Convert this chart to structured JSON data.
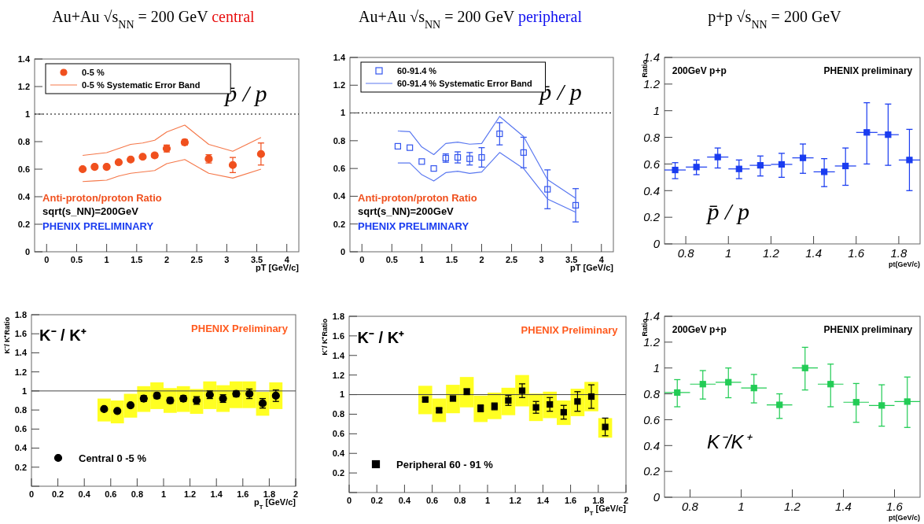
{
  "chart_data": [
    {
      "type": "scatter",
      "title": "Au+Au √s$_{NN}$ = 200 GeV central",
      "xlabel": "pT [GeV/c]",
      "xlim": [
        -0.2,
        4.2
      ],
      "xticks": [
        0,
        0.5,
        1,
        1.5,
        2,
        2.5,
        3,
        3.5,
        4
      ],
      "ylim": [
        0,
        1.4
      ],
      "yticks": [
        0,
        0.2,
        0.4,
        0.6,
        0.8,
        1,
        1.2,
        1.4
      ],
      "legend": "top left",
      "ref_lines": [
        {
          "axis": "y",
          "value": 1,
          "line_style": "dotted",
          "color": "#000000"
        }
      ],
      "annotations": [
        "p̄ / p",
        "Anti-proton/proton Ratio",
        "sqrt(s_NN)=200GeV",
        "PHENIX PRELIMINARY"
      ],
      "series": [
        {
          "name": "0-5 %",
          "color": "#f0501e",
          "marker": "circle",
          "x": [
            0.6,
            0.8,
            1.0,
            1.2,
            1.4,
            1.6,
            1.8,
            2.0,
            2.3,
            2.7,
            3.1,
            3.57
          ],
          "values": [
            0.6,
            0.617,
            0.617,
            0.65,
            0.67,
            0.69,
            0.7,
            0.75,
            0.795,
            0.675,
            0.63,
            0.71
          ],
          "errors": [
            0.01,
            0.01,
            0.01,
            0.01,
            0.01,
            0.01,
            0.015,
            0.025,
            0.02,
            0.03,
            0.055,
            0.08
          ]
        },
        {
          "type": "line",
          "name": "0-5 % Systematic Error Band",
          "color": "#f5784a",
          "x": [
            0.6,
            0.8,
            1.0,
            1.2,
            1.4,
            1.6,
            1.8,
            2.0,
            2.3,
            2.7,
            3.1,
            3.57
          ],
          "values": [
            0.7,
            0.71,
            0.72,
            0.75,
            0.78,
            0.79,
            0.81,
            0.87,
            0.92,
            0.78,
            0.73,
            0.83
          ]
        },
        {
          "type": "line",
          "color": "#f5784a",
          "x": [
            0.6,
            0.8,
            1.0,
            1.2,
            1.4,
            1.6,
            1.8,
            2.0,
            2.3,
            2.7,
            3.1,
            3.57
          ],
          "values": [
            0.51,
            0.515,
            0.52,
            0.55,
            0.57,
            0.58,
            0.59,
            0.64,
            0.67,
            0.57,
            0.535,
            0.6
          ]
        }
      ]
    },
    {
      "type": "scatter",
      "title": "Au+Au √s$_{NN}$ = 200 GeV peripheral",
      "xlabel": "pT [GeV/c]",
      "xlim": [
        -0.2,
        4.2
      ],
      "xticks": [
        0,
        0.5,
        1,
        1.5,
        2,
        2.5,
        3,
        3.5,
        4
      ],
      "ylim": [
        0,
        1.4
      ],
      "yticks": [
        0,
        0.2,
        0.4,
        0.6,
        0.8,
        1,
        1.2,
        1.4
      ],
      "legend": "top left",
      "ref_lines": [
        {
          "axis": "y",
          "value": 1,
          "line_style": "dotted",
          "color": "#000000"
        }
      ],
      "annotations": [
        "p̄ / p",
        "Anti-proton/proton Ratio",
        "sqrt(s_NN)=200GeV",
        "PHENIX PRELIMINARY"
      ],
      "series": [
        {
          "name": "60-91.4 %",
          "color": "#3355ee",
          "marker": "square",
          "x": [
            0.6,
            0.8,
            1.0,
            1.2,
            1.4,
            1.6,
            1.8,
            2.0,
            2.3,
            2.7,
            3.1,
            3.57
          ],
          "values": [
            0.76,
            0.75,
            0.65,
            0.6,
            0.675,
            0.68,
            0.67,
            0.68,
            0.85,
            0.715,
            0.45,
            0.335
          ],
          "errors": [
            null,
            null,
            null,
            null,
            0.03,
            0.04,
            0.045,
            0.07,
            0.08,
            0.11,
            0.14,
            0.12
          ]
        },
        {
          "type": "line",
          "name": "60-91.4 % Systematic Error Band",
          "color": "#5a78f0",
          "x": [
            0.6,
            0.8,
            1.0,
            1.2,
            1.4,
            1.6,
            1.8,
            2.0,
            2.3,
            2.7,
            3.1,
            3.57
          ],
          "values": [
            0.87,
            0.865,
            0.755,
            0.7,
            0.78,
            0.79,
            0.775,
            0.78,
            0.975,
            0.83,
            0.52,
            0.385
          ]
        },
        {
          "type": "line",
          "color": "#5a78f0",
          "x": [
            0.6,
            0.8,
            1.0,
            1.2,
            1.4,
            1.6,
            1.8,
            2.0,
            2.3,
            2.7,
            3.1,
            3.57
          ],
          "values": [
            0.64,
            0.64,
            0.555,
            0.51,
            0.57,
            0.58,
            0.565,
            0.575,
            0.715,
            0.6,
            0.38,
            0.285
          ]
        }
      ]
    },
    {
      "type": "scatter",
      "title": "p+p √s$_{NN}$ = 200 GeV",
      "xlabel": "pt(GeV/c)",
      "ylabel": "Ratio",
      "xlim": [
        0.7,
        1.9
      ],
      "xticks": [
        0.8,
        1,
        1.2,
        1.4,
        1.6,
        1.8
      ],
      "ylim": [
        0,
        1.4
      ],
      "yticks": [
        0,
        0.2,
        0.4,
        0.6,
        0.8,
        1,
        1.2,
        1.4
      ],
      "annotations": [
        "200GeV p+p",
        "PHENIX preliminary",
        "p̄ / p"
      ],
      "series": [
        {
          "color": "#1a3cf0",
          "marker": "square",
          "x": [
            0.75,
            0.85,
            0.95,
            1.05,
            1.15,
            1.25,
            1.35,
            1.45,
            1.55,
            1.65,
            1.75,
            1.85
          ],
          "values": [
            0.555,
            0.577,
            0.652,
            0.563,
            0.59,
            0.597,
            0.646,
            0.541,
            0.585,
            0.837,
            0.82,
            0.63
          ],
          "errors": [
            [
              0.49,
              0.61
            ],
            [
              0.52,
              0.63
            ],
            [
              0.57,
              0.72
            ],
            [
              0.49,
              0.63
            ],
            [
              0.51,
              0.66
            ],
            [
              0.5,
              0.68
            ],
            [
              0.53,
              0.75
            ],
            [
              0.43,
              0.64
            ],
            [
              0.44,
              0.72
            ],
            [
              0.6,
              1.06
            ],
            [
              0.59,
              1.05
            ],
            [
              0.4,
              0.86
            ]
          ],
          "xerrors": [
            0.05,
            0.05,
            0.05,
            0.05,
            0.05,
            0.05,
            0.05,
            0.05,
            0.05,
            0.05,
            0.05,
            0.05
          ]
        }
      ]
    },
    {
      "type": "scatter",
      "xlabel": "p$_{T}$ [GeV/c]",
      "ylabel": "K⁻/ K⁺Ratio",
      "xlim": [
        0,
        2
      ],
      "xticks": [
        0,
        0.2,
        0.4,
        0.6,
        0.8,
        1,
        1.2,
        1.4,
        1.6,
        1.8,
        2
      ],
      "ylim": [
        0,
        1.8
      ],
      "yticks": [
        {
          "value": 0,
          "label": null
        },
        0.2,
        0.4,
        0.6,
        0.8,
        1,
        1.2,
        1.4,
        1.6,
        1.8
      ],
      "legend": "bottom left",
      "ref_lines": [
        {
          "axis": "y",
          "value": 1,
          "line_style": "solid",
          "color": "#444444"
        }
      ],
      "annotations": [
        "K⁻ / K⁺",
        "PHENIX Preliminary"
      ],
      "series": [
        {
          "type": "bar",
          "color": "#ffff22",
          "x": [
            0.55,
            0.65,
            0.75,
            0.85,
            0.95,
            1.05,
            1.15,
            1.25,
            1.35,
            1.45,
            1.55,
            1.65,
            1.75,
            1.85
          ],
          "base": [
            0.68,
            0.66,
            0.72,
            0.78,
            0.81,
            0.77,
            0.78,
            0.76,
            0.81,
            0.78,
            0.82,
            0.82,
            0.74,
            0.81
          ],
          "values": [
            0.24,
            0.24,
            0.25,
            0.27,
            0.28,
            0.26,
            0.27,
            0.26,
            0.29,
            0.28,
            0.28,
            0.28,
            0.25,
            0.28
          ]
        },
        {
          "name": "Central 0 -5 %",
          "color": "#000000",
          "marker": "circle",
          "x": [
            0.55,
            0.65,
            0.75,
            0.85,
            0.95,
            1.05,
            1.15,
            1.25,
            1.35,
            1.45,
            1.55,
            1.65,
            1.75,
            1.85
          ],
          "values": [
            0.81,
            0.79,
            0.85,
            0.92,
            0.95,
            0.9,
            0.92,
            0.9,
            0.96,
            0.92,
            0.97,
            0.97,
            0.87,
            0.95
          ],
          "errors": [
            0.01,
            0.01,
            0.01,
            0.03,
            0.03,
            0.03,
            0.03,
            0.04,
            0.04,
            0.04,
            0.03,
            0.05,
            0.05,
            0.06
          ]
        }
      ]
    },
    {
      "type": "scatter",
      "xlabel": "p$_{T}$ [GeV/c]",
      "ylabel": "K⁻/ K⁺Ratio",
      "xlim": [
        0,
        2
      ],
      "xticks": [
        0,
        0.2,
        0.4,
        0.6,
        0.8,
        1,
        1.2,
        1.4,
        1.6,
        1.8,
        2
      ],
      "ylim": [
        0,
        1.8
      ],
      "yticks": [
        {
          "value": 0,
          "label": null
        },
        0.2,
        0.4,
        0.6,
        0.8,
        1,
        1.2,
        1.4,
        1.6,
        1.8
      ],
      "legend": "bottom left",
      "ref_lines": [
        {
          "axis": "y",
          "value": 1,
          "line_style": "solid",
          "color": "#444444"
        }
      ],
      "annotations": [
        "K⁻ / K⁺",
        "PHENIX Preliminary"
      ],
      "series": [
        {
          "type": "bar",
          "color": "#ffff22",
          "x": [
            0.55,
            0.65,
            0.75,
            0.85,
            0.95,
            1.05,
            1.15,
            1.25,
            1.35,
            1.45,
            1.55,
            1.65,
            1.75,
            1.85
          ],
          "base": [
            0.8,
            0.72,
            0.81,
            0.87,
            0.72,
            0.75,
            0.79,
            0.88,
            0.73,
            0.76,
            0.69,
            0.78,
            0.83,
            0.56
          ],
          "values": [
            0.29,
            0.24,
            0.29,
            0.31,
            0.27,
            0.27,
            0.28,
            0.32,
            0.28,
            0.27,
            0.25,
            0.28,
            0.3,
            0.2
          ]
        },
        {
          "name": "Peripheral 60 - 91 %",
          "color": "#000000",
          "marker": "square",
          "x": [
            0.55,
            0.65,
            0.75,
            0.85,
            0.95,
            1.05,
            1.15,
            1.25,
            1.35,
            1.45,
            1.55,
            1.65,
            1.75,
            1.85
          ],
          "values": [
            0.95,
            0.84,
            0.96,
            1.03,
            0.86,
            0.88,
            0.94,
            1.04,
            0.87,
            0.9,
            0.82,
            0.93,
            0.98,
            0.67
          ],
          "errors": [
            0.02,
            0.02,
            0.02,
            0.03,
            0.035,
            0.035,
            0.05,
            0.07,
            0.06,
            0.07,
            0.07,
            0.1,
            0.12,
            0.09
          ]
        }
      ]
    },
    {
      "type": "scatter",
      "xlabel": "pt(GeV/c)",
      "ylabel": "Ratio",
      "xlim": [
        0.7,
        1.7
      ],
      "xticks": [
        0.8,
        1,
        1.2,
        1.4,
        1.6
      ],
      "ylim": [
        0,
        1.4
      ],
      "yticks": [
        0,
        0.2,
        0.4,
        0.6,
        0.8,
        1,
        1.2,
        1.4
      ],
      "annotations": [
        "200GeV p+p",
        "PHENIX preliminary",
        "K⁻/K⁺"
      ],
      "series": [
        {
          "color": "#22cc55",
          "marker": "square",
          "x": [
            0.75,
            0.85,
            0.95,
            1.05,
            1.15,
            1.25,
            1.35,
            1.45,
            1.55,
            1.65
          ],
          "values": [
            0.81,
            0.875,
            0.89,
            0.845,
            0.715,
            1.0,
            0.875,
            0.735,
            0.71,
            0.74
          ],
          "errors": [
            [
              0.7,
              0.91
            ],
            [
              0.76,
              0.98
            ],
            [
              0.77,
              1.0
            ],
            [
              0.73,
              0.95
            ],
            [
              0.61,
              0.8
            ],
            [
              0.83,
              1.16
            ],
            [
              0.7,
              1.03
            ],
            [
              0.58,
              0.88
            ],
            [
              0.55,
              0.87
            ],
            [
              0.54,
              0.93
            ]
          ],
          "xerrors": [
            0.05,
            0.05,
            0.05,
            0.05,
            0.05,
            0.05,
            0.05,
            0.05,
            0.05,
            0.05
          ]
        }
      ]
    }
  ]
}
